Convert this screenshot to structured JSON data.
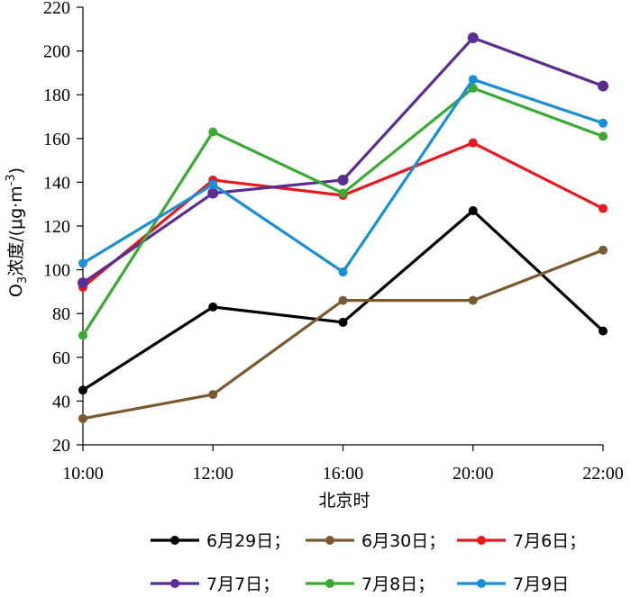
{
  "chart_data": {
    "type": "line",
    "categories": [
      "10:00",
      "12:00",
      "16:00",
      "20:00",
      "22:00"
    ],
    "xlabel": "北京时",
    "ylabel": {
      "prefix": "O",
      "sub": "3",
      "mid": "浓度/(μg·m",
      "sup": "-3",
      "suffix": ")"
    },
    "ylim": [
      20,
      220
    ],
    "yticks": [
      "20",
      "40",
      "60",
      "80",
      "100",
      "120",
      "140",
      "160",
      "180",
      "200",
      "220"
    ],
    "grid": false,
    "legend_position": "bottom",
    "series": [
      {
        "name": "6月29日；",
        "color": "#000000",
        "values": [
          45,
          83,
          76,
          127,
          72
        ]
      },
      {
        "name": "6月30日；",
        "color": "#7a5a30",
        "values": [
          32,
          43,
          86,
          86,
          109
        ]
      },
      {
        "name": "7月6日；",
        "color": "#e8191e",
        "values": [
          92,
          141,
          134,
          158,
          128
        ]
      },
      {
        "name": "7月7日；",
        "color": "#5b2d90",
        "values": [
          94,
          135,
          141,
          206,
          184
        ]
      },
      {
        "name": "7月8日；",
        "color": "#3aa935",
        "values": [
          70,
          163,
          135,
          183,
          161
        ]
      },
      {
        "name": "7月9日",
        "color": "#1b8fd6",
        "values": [
          103,
          139,
          99,
          187,
          167
        ]
      }
    ]
  }
}
